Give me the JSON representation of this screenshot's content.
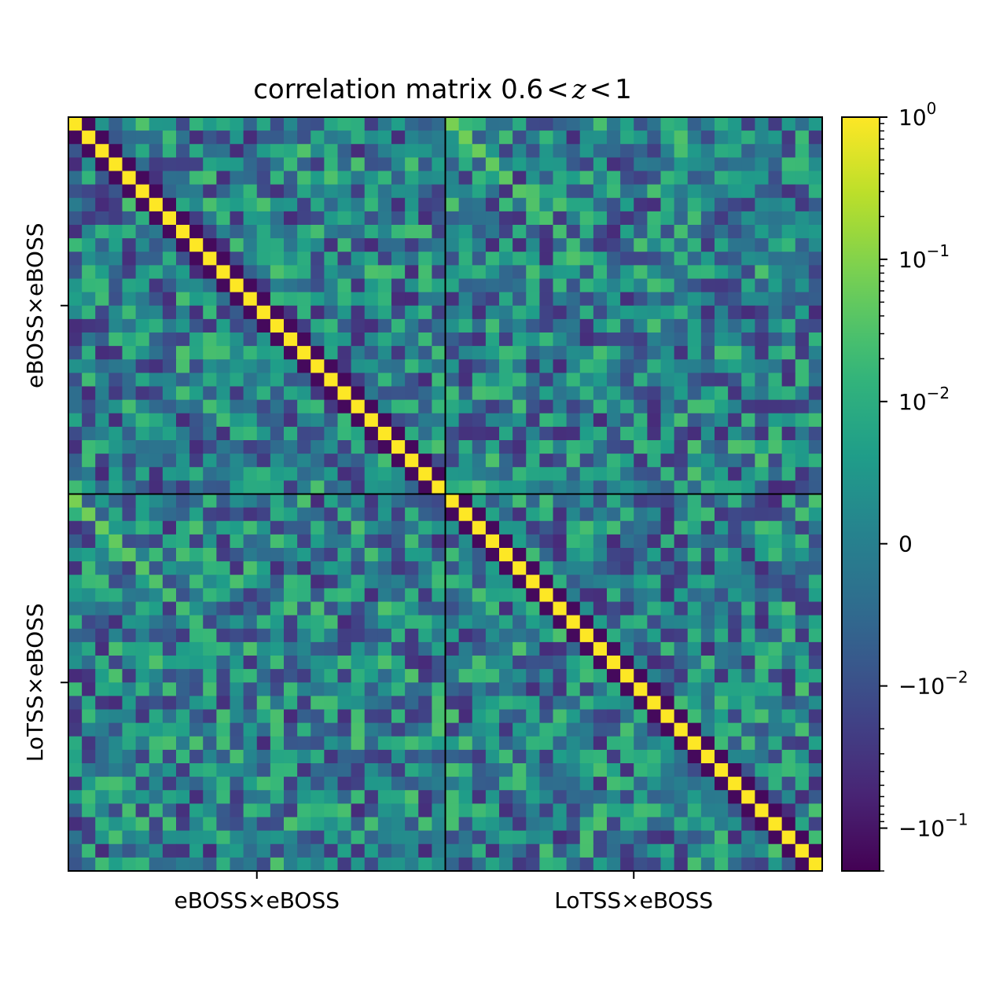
{
  "chart_data": {
    "type": "heatmap",
    "title_prefix": "correlation matrix 0.6",
    "title_var": "z",
    "title_suffix": "1",
    "title_relation": "<",
    "x_tick_labels": [
      "eBOSS×eBOSS",
      "LoTSS×eBOSS"
    ],
    "y_tick_labels": [
      "eBOSS×eBOSS",
      "LoTSS×eBOSS"
    ],
    "matrix_size": 56,
    "block_size": 28,
    "color_scale": "symlog",
    "colormap": "viridis",
    "colorbar": {
      "range": [
        -0.2,
        1
      ],
      "major_ticks": [
        {
          "value": 1,
          "base": "10",
          "exp": "0",
          "sign": ""
        },
        {
          "value": 0.1,
          "base": "10",
          "exp": "−1",
          "sign": ""
        },
        {
          "value": 0.01,
          "base": "10",
          "exp": "−2",
          "sign": ""
        },
        {
          "value": 0,
          "base": "0",
          "exp": "",
          "sign": ""
        },
        {
          "value": -0.01,
          "base": "10",
          "exp": "−2",
          "sign": "−"
        },
        {
          "value": -0.1,
          "base": "10",
          "exp": "−1",
          "sign": "−"
        }
      ]
    },
    "diagonal_value": 1,
    "first_offdiagonal_value": -0.15,
    "cross_block_diagonal_value": 0.08,
    "colors": {
      "viridis": [
        "#440154",
        "#482878",
        "#3e4989",
        "#31688e",
        "#26828e",
        "#1f9e89",
        "#35b779",
        "#6ece58",
        "#b5de2b",
        "#fde725"
      ]
    }
  }
}
